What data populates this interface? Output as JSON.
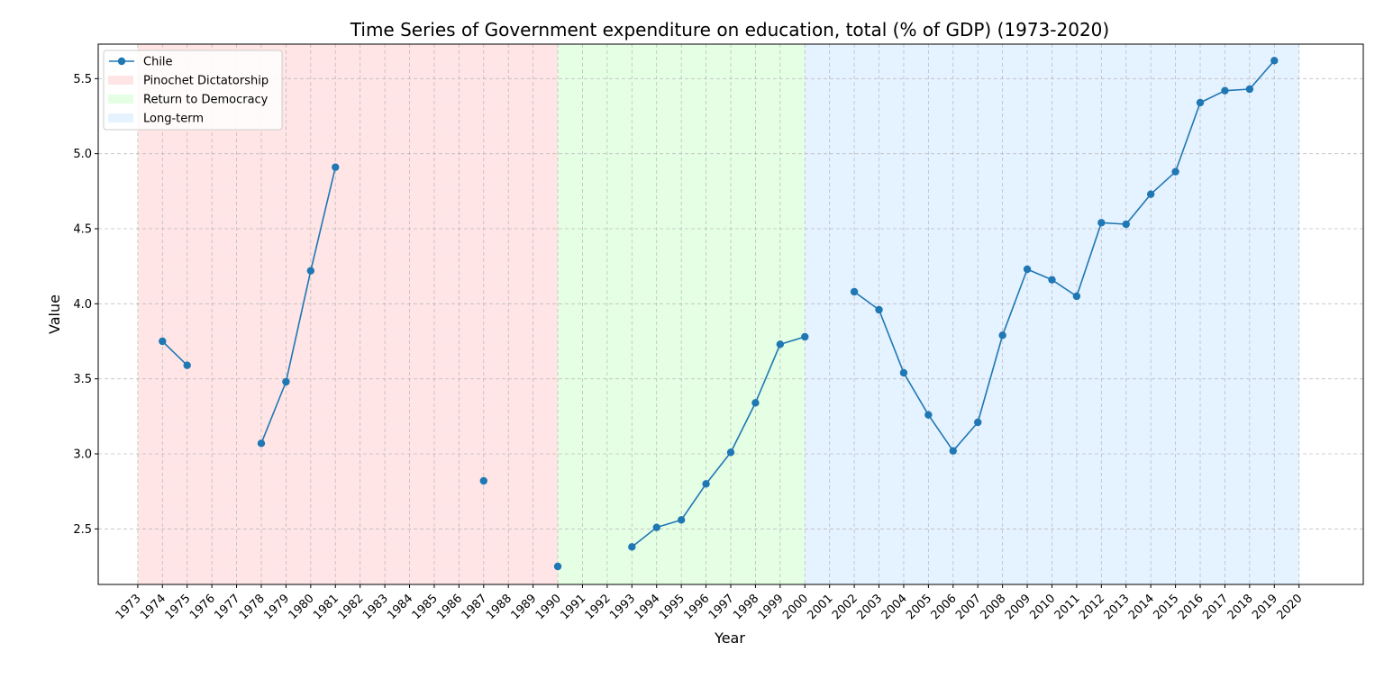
{
  "chart_data": {
    "type": "line",
    "title": "Time Series of Government expenditure on education, total (% of GDP) (1973-2020)",
    "xlabel": "Year",
    "ylabel": "Value",
    "x": [
      1973,
      1974,
      1975,
      1976,
      1977,
      1978,
      1979,
      1980,
      1981,
      1982,
      1983,
      1984,
      1985,
      1986,
      1987,
      1988,
      1989,
      1990,
      1991,
      1992,
      1993,
      1994,
      1995,
      1996,
      1997,
      1998,
      1999,
      2000,
      2001,
      2002,
      2003,
      2004,
      2005,
      2006,
      2007,
      2008,
      2009,
      2010,
      2011,
      2012,
      2013,
      2014,
      2015,
      2016,
      2017,
      2018,
      2019,
      2020
    ],
    "xtick_labels": [
      "1973",
      "1974",
      "1975",
      "1976",
      "1977",
      "1978",
      "1979",
      "1980",
      "1981",
      "1982",
      "1983",
      "1984",
      "1985",
      "1986",
      "1987",
      "1988",
      "1989",
      "1990",
      "1991",
      "1992",
      "1993",
      "1994",
      "1995",
      "1996",
      "1997",
      "1998",
      "1999",
      "2000",
      "2001",
      "2002",
      "2003",
      "2004",
      "2005",
      "2006",
      "2007",
      "2008",
      "2009",
      "2010",
      "2011",
      "2012",
      "2013",
      "2014",
      "2015",
      "2016",
      "2017",
      "2018",
      "2019",
      "2020"
    ],
    "yticks": [
      2.5,
      3.0,
      3.5,
      4.0,
      4.5,
      5.0,
      5.5
    ],
    "ytick_labels": [
      "2.5",
      "3.0",
      "3.5",
      "4.0",
      "4.5",
      "5.0",
      "5.5"
    ],
    "xlim": [
      1971.4,
      2022.6
    ],
    "ylim": [
      2.13,
      5.73
    ],
    "grid": true,
    "legend_position": "top-left",
    "series": [
      {
        "name": "Chile",
        "color": "#1f77b4",
        "marker": "circle",
        "values": [
          null,
          3.75,
          3.59,
          null,
          null,
          3.07,
          3.48,
          4.22,
          4.91,
          null,
          null,
          null,
          null,
          null,
          2.82,
          null,
          null,
          2.25,
          null,
          null,
          2.38,
          2.51,
          2.56,
          2.8,
          3.01,
          3.34,
          3.73,
          3.78,
          null,
          4.08,
          3.96,
          3.54,
          3.26,
          3.02,
          3.21,
          3.79,
          4.23,
          4.16,
          4.05,
          4.54,
          4.53,
          4.73,
          4.88,
          5.34,
          5.42,
          5.43,
          5.62,
          null
        ]
      }
    ],
    "periods": [
      {
        "name": "Pinochet Dictatorship",
        "start": 1973,
        "end": 1990,
        "color": "#ffcccc"
      },
      {
        "name": "Return to Democracy",
        "start": 1990,
        "end": 2000,
        "color": "#ccffcc"
      },
      {
        "name": "Long-term",
        "start": 2000,
        "end": 2020,
        "color": "#cce5ff"
      }
    ]
  }
}
